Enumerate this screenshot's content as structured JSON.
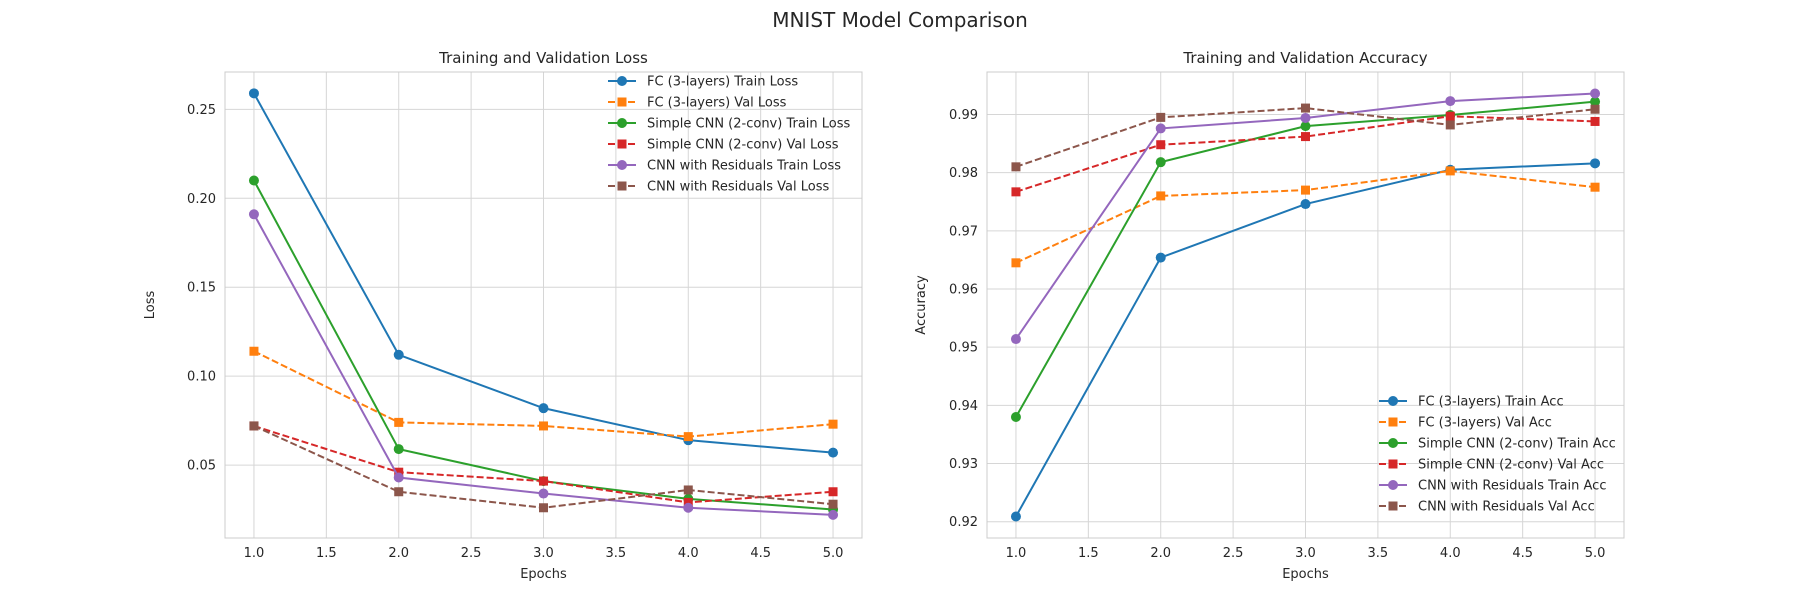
{
  "figure": {
    "suptitle": "MNIST Model Comparison"
  },
  "chart_data": [
    {
      "type": "line",
      "title": "Training and Validation Loss",
      "xlabel": "Epochs",
      "ylabel": "Loss",
      "x": [
        1,
        2,
        3,
        4,
        5
      ],
      "xlim": [
        0.8,
        5.2
      ],
      "ylim": [
        0.009,
        0.271
      ],
      "xticks": [
        "1.0",
        "1.5",
        "2.0",
        "2.5",
        "3.0",
        "3.5",
        "4.0",
        "4.5",
        "5.0"
      ],
      "yticks": [
        "0.05",
        "0.10",
        "0.15",
        "0.20",
        "0.25"
      ],
      "grid": true,
      "legend_position": "top-right",
      "series": [
        {
          "name": "FC (3-layers) Train Loss",
          "values": [
            0.259,
            0.112,
            0.082,
            0.064,
            0.057
          ],
          "color": "#1f77b4",
          "dash": "solid",
          "marker": "circle"
        },
        {
          "name": "FC (3-layers) Val Loss",
          "values": [
            0.114,
            0.074,
            0.072,
            0.066,
            0.073
          ],
          "color": "#ff7f0e",
          "dash": "dashed",
          "marker": "square"
        },
        {
          "name": "Simple CNN (2-conv) Train Loss",
          "values": [
            0.21,
            0.059,
            0.041,
            0.031,
            0.025
          ],
          "color": "#2ca02c",
          "dash": "solid",
          "marker": "circle"
        },
        {
          "name": "Simple CNN (2-conv) Val Loss",
          "values": [
            0.072,
            0.046,
            0.041,
            0.029,
            0.035
          ],
          "color": "#d62728",
          "dash": "dashed",
          "marker": "square"
        },
        {
          "name": "CNN with Residuals Train Loss",
          "values": [
            0.191,
            0.043,
            0.034,
            0.026,
            0.022
          ],
          "color": "#9467bd",
          "dash": "solid",
          "marker": "circle"
        },
        {
          "name": "CNN with Residuals Val Loss",
          "values": [
            0.072,
            0.035,
            0.026,
            0.036,
            0.028
          ],
          "color": "#8c564b",
          "dash": "dashed",
          "marker": "square"
        }
      ]
    },
    {
      "type": "line",
      "title": "Training and Validation Accuracy",
      "xlabel": "Epochs",
      "ylabel": "Accuracy",
      "x": [
        1,
        2,
        3,
        4,
        5
      ],
      "xlim": [
        0.8,
        5.2
      ],
      "ylim": [
        0.9172,
        0.9973
      ],
      "xticks": [
        "1.0",
        "1.5",
        "2.0",
        "2.5",
        "3.0",
        "3.5",
        "4.0",
        "4.5",
        "5.0"
      ],
      "yticks": [
        "0.92",
        "0.93",
        "0.94",
        "0.95",
        "0.96",
        "0.97",
        "0.98",
        "0.99"
      ],
      "grid": true,
      "legend_position": "lower-right",
      "series": [
        {
          "name": "FC (3-layers) Train Acc",
          "values": [
            0.9209,
            0.9654,
            0.9746,
            0.9805,
            0.9816
          ],
          "color": "#1f77b4",
          "dash": "solid",
          "marker": "circle"
        },
        {
          "name": "FC (3-layers) Val Acc",
          "values": [
            0.9645,
            0.976,
            0.977,
            0.9803,
            0.9775
          ],
          "color": "#ff7f0e",
          "dash": "dashed",
          "marker": "square"
        },
        {
          "name": "Simple CNN (2-conv) Train Acc",
          "values": [
            0.938,
            0.9818,
            0.988,
            0.9899,
            0.9922
          ],
          "color": "#2ca02c",
          "dash": "solid",
          "marker": "circle"
        },
        {
          "name": "Simple CNN (2-conv) Val Acc",
          "values": [
            0.9767,
            0.9848,
            0.9862,
            0.9897,
            0.9888
          ],
          "color": "#d62728",
          "dash": "dashed",
          "marker": "square"
        },
        {
          "name": "CNN with Residuals Train Acc",
          "values": [
            0.9514,
            0.9876,
            0.9894,
            0.9923,
            0.9936
          ],
          "color": "#9467bd",
          "dash": "solid",
          "marker": "circle"
        },
        {
          "name": "CNN with Residuals Val Acc",
          "values": [
            0.981,
            0.9895,
            0.9911,
            0.9882,
            0.9909
          ],
          "color": "#8c564b",
          "dash": "dashed",
          "marker": "square"
        }
      ]
    }
  ]
}
